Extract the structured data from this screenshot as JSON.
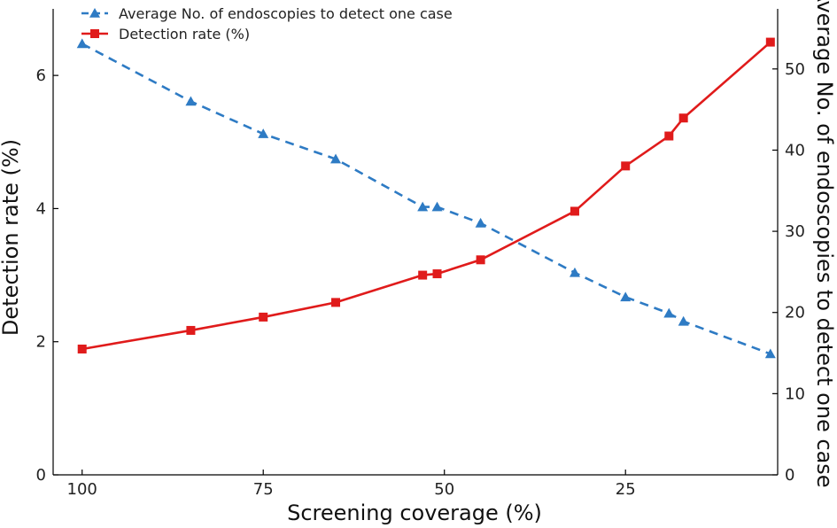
{
  "chart_data": {
    "type": "line",
    "xlabel": "Screening coverage (%)",
    "ylabel": "Detection rate (%)",
    "y2label": "Average No. of endoscopies to detect one case",
    "x_reversed": true,
    "xlim": [
      104,
      4
    ],
    "ylim": [
      0,
      7
    ],
    "y2lim": [
      0,
      57.4
    ],
    "x_ticks": [
      100,
      75,
      50,
      25
    ],
    "y_ticks": [
      0,
      2,
      4,
      6
    ],
    "y2_ticks": [
      0,
      10,
      20,
      30,
      40,
      50
    ],
    "grid": false,
    "legend_position": "top-left",
    "series": [
      {
        "name": "Average No. of endoscopies to detect one case",
        "axis": "right",
        "color": "#2e7bc4",
        "marker": "triangle",
        "line_style": "dashed",
        "x": [
          100,
          85,
          75,
          65,
          53,
          51,
          45,
          32,
          25,
          19,
          17,
          5
        ],
        "y": [
          53.1,
          46.0,
          42.0,
          38.9,
          33.0,
          33.0,
          31.0,
          24.9,
          21.9,
          19.9,
          18.9,
          14.9
        ]
      },
      {
        "name": "Detection rate (%)",
        "axis": "left",
        "color": "#e01b1b",
        "marker": "square",
        "line_style": "solid",
        "x": [
          100,
          85,
          75,
          65,
          53,
          51,
          45,
          32,
          25,
          19,
          17,
          5
        ],
        "y": [
          1.89,
          2.17,
          2.37,
          2.59,
          3.0,
          3.02,
          3.23,
          3.96,
          4.64,
          5.09,
          5.36,
          6.5
        ]
      }
    ]
  }
}
